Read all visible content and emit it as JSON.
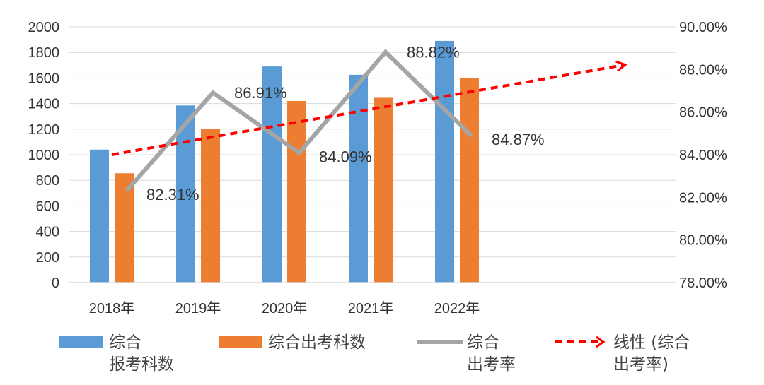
{
  "chart_data": {
    "type": "bar",
    "categories": [
      "2018年",
      "2019年",
      "2020年",
      "2021年",
      "2022年"
    ],
    "y_left": {
      "range": [
        0,
        2000
      ],
      "ticks": [
        "0",
        "200",
        "400",
        "600",
        "800",
        "1000",
        "1200",
        "1400",
        "1600",
        "1800",
        "2000"
      ]
    },
    "y_right": {
      "range": [
        78,
        90
      ],
      "ticks": [
        "78.00%",
        "80.00%",
        "82.00%",
        "84.00%",
        "86.00%",
        "88.00%",
        "90.00%"
      ]
    },
    "series": [
      {
        "name": "综合报考科数",
        "legend_lines": [
          "综合",
          "报考科数"
        ],
        "kind": "bar",
        "axis": "left",
        "color": "#5B9BD5",
        "values": [
          1040,
          1385,
          1690,
          1625,
          1890
        ]
      },
      {
        "name": "综合出考科数",
        "legend_lines": [
          "综合出考科数"
        ],
        "kind": "bar",
        "axis": "left",
        "color": "#ED7D31",
        "values": [
          855,
          1200,
          1420,
          1445,
          1600
        ]
      },
      {
        "name": "综合出考率",
        "legend_lines": [
          "综合",
          "出考率"
        ],
        "kind": "line",
        "axis": "right",
        "color": "#A5A5A5",
        "values": [
          82.31,
          86.91,
          84.09,
          88.82,
          84.87
        ],
        "labels": [
          "82.31%",
          "86.91%",
          "84.09%",
          "88.82%",
          "84.87%"
        ]
      },
      {
        "name": "线性 (综合出考率)",
        "legend_lines": [
          "线性 (综合",
          "出考率)"
        ],
        "kind": "trendline",
        "axis": "right",
        "color": "#FF0000",
        "start": 84.0,
        "end": 88.2,
        "extends_past_last": true
      }
    ],
    "grid": true,
    "legend_position": "bottom"
  }
}
